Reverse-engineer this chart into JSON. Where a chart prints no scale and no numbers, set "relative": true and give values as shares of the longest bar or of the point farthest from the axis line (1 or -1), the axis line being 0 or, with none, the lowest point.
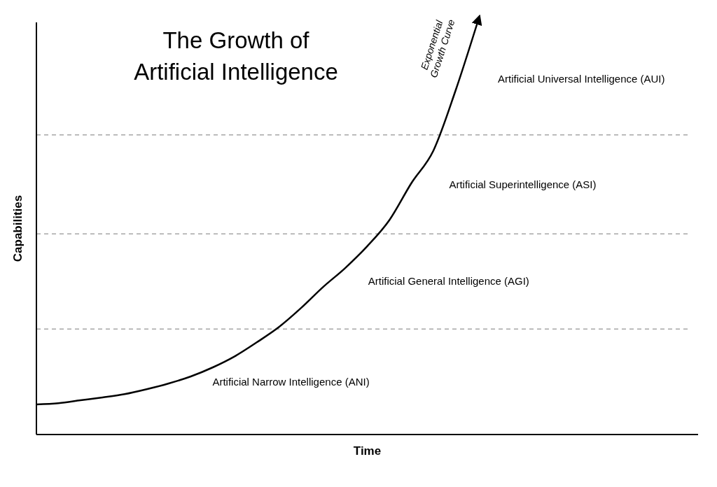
{
  "chart_data": {
    "type": "line",
    "title": "The Growth of\nArtificial Intelligence",
    "xlabel": "Time",
    "ylabel": "Capabilities",
    "relative": true,
    "categories": [
      null,
      null,
      null,
      null,
      null,
      null,
      null,
      null,
      null,
      null,
      null,
      null,
      null,
      null,
      null,
      null,
      null,
      null,
      null,
      null,
      null,
      null,
      null,
      null,
      null,
      null,
      null,
      null,
      null,
      null,
      null
    ],
    "series": [
      {
        "name": "Exponential Growth Curve",
        "color": "#000000",
        "values": [
          0.073,
          0.076,
          0.083,
          0.09,
          0.098,
          0.11,
          0.124,
          0.141,
          0.163,
          0.19,
          0.224,
          0.261,
          0.307,
          0.358,
          0.404,
          0.457,
          0.52,
          0.61,
          0.689,
          0.834,
          1,
          null,
          null,
          null,
          null,
          null,
          null,
          null,
          null,
          null,
          null
        ]
      }
    ],
    "ref_lines": [
      {
        "axis": "y",
        "value": 0.256,
        "color": "#a6a6a6",
        "line_style": "dashed"
      },
      {
        "axis": "y",
        "value": 0.487,
        "color": "#a6a6a6",
        "line_style": "dashed"
      },
      {
        "axis": "y",
        "value": 0.727,
        "color": "#a6a6a6",
        "line_style": "dashed"
      }
    ],
    "annotations": [
      "Artificial Universal Intelligence (AUI)",
      "Artificial Superintelligence (ASI)",
      "Artificial General Intelligence (AGI)",
      "Artificial Narrow Intelligence (ANI)"
    ],
    "marker": "none",
    "line_style": "solid"
  }
}
